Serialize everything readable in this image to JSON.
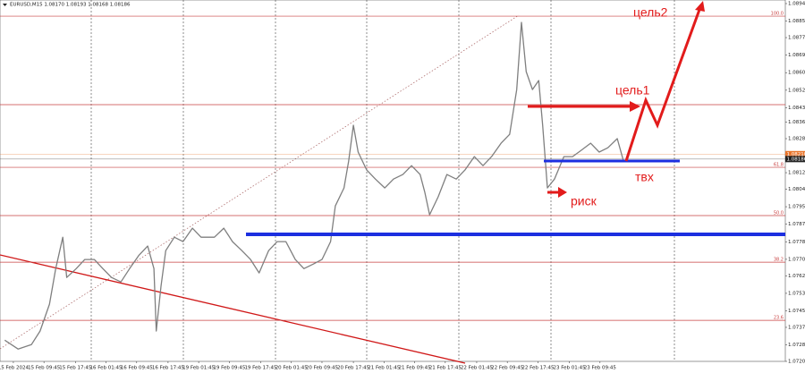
{
  "chart_data": {
    "type": "line",
    "title": "EURUSD,M15  1.08170 1.08193 1.08168 1.08186",
    "xlim": [
      0,
      100
    ],
    "ylim": [
      1.07205,
      1.0894
    ],
    "yticks": [
      {
        "value": 1.0894,
        "label": "1.08940"
      },
      1.08855,
      1.08775,
      {
        "value": 1.0869,
        "label": "1.08690"
      },
      1.08605,
      {
        "value": 1.0852,
        "label": "1.08520"
      },
      1.08435,
      1.08365,
      1.08285,
      {
        "value": 1.082,
        "label": "1.08200"
      },
      {
        "value": 1.0812,
        "label": "1.08120"
      },
      {
        "value": 1.0804,
        "label": "1.08040"
      },
      1.07955,
      {
        "value": 1.0787,
        "label": "1.07870"
      },
      1.07785,
      {
        "value": 1.077,
        "label": "1.07700"
      },
      {
        "value": 1.0762,
        "label": "1.07620"
      },
      1.07535,
      {
        "value": 1.0745,
        "label": "1.07450"
      },
      {
        "value": 1.0737,
        "label": "1.07370"
      },
      1.07285,
      1.07205
    ],
    "xticks": [
      {
        "value": 1.7,
        "label": "15 Feb 2024"
      },
      {
        "value": 5.6,
        "label": "15 Feb 09:45"
      },
      {
        "value": 9.6,
        "label": "15 Feb 17:45"
      },
      {
        "value": 13.5,
        "label": "16 Feb 01:45"
      },
      {
        "value": 17.4,
        "label": "16 Feb 09:45"
      },
      {
        "value": 21.4,
        "label": "16 Feb 17:45"
      },
      {
        "value": 25.3,
        "label": "19 Feb 01:45"
      },
      {
        "value": 29.2,
        "label": "19 Feb 09:45"
      },
      {
        "value": 33.2,
        "label": "19 Feb 17:45"
      },
      {
        "value": 37.1,
        "label": "20 Feb 01:45"
      },
      {
        "value": 41.0,
        "label": "20 Feb 09:45"
      },
      {
        "value": 45.0,
        "label": "20 Feb 17:45"
      },
      {
        "value": 48.9,
        "label": "21 Feb 01:45"
      },
      {
        "value": 52.8,
        "label": "21 Feb 09:45"
      },
      {
        "value": 56.7,
        "label": "21 Feb 17:45"
      },
      {
        "value": 60.7,
        "label": "22 Feb 01:45"
      },
      {
        "value": 64.6,
        "label": "22 Feb 09:45"
      },
      {
        "value": 68.5,
        "label": "22 Feb 17:45"
      },
      {
        "value": 72.5,
        "label": "23 Feb 01:45"
      },
      {
        "value": 76.4,
        "label": "23 Feb 09:45"
      }
    ],
    "series": [
      {
        "color": "#7f7f7f",
        "x": [
          0.6,
          2.3,
          4.0,
          5.1,
          6.3,
          7.1,
          8.0,
          8.5,
          9.7,
          10.8,
          12.0,
          13.1,
          14.2,
          15.4,
          16.5,
          17.7,
          18.8,
          19.6,
          19.9,
          20.5,
          21.1,
          22.2,
          23.3,
          24.5,
          25.6,
          27.3,
          28.5,
          29.6,
          30.8,
          31.9,
          33.0,
          34.2,
          35.3,
          36.4,
          37.6,
          38.7,
          39.9,
          41.0,
          42.1,
          42.7,
          43.8,
          44.4,
          45.0,
          45.6,
          46.7,
          47.8,
          49.0,
          50.1,
          51.3,
          52.4,
          53.5,
          54.1,
          54.7,
          55.8,
          56.9,
          58.1,
          59.2,
          60.4,
          61.5,
          62.6,
          63.8,
          64.9,
          65.8,
          66.4,
          67.0,
          67.8,
          68.6,
          69.1,
          69.7,
          70.6,
          71.8,
          72.9,
          74.0,
          75.2,
          76.3,
          77.4,
          78.6,
          79.4
        ],
        "values": [
          1.07308,
          1.07265,
          1.07286,
          1.07352,
          1.07482,
          1.07655,
          1.07807,
          1.07612,
          1.07655,
          1.07699,
          1.07699,
          1.07655,
          1.07612,
          1.0759,
          1.07655,
          1.0772,
          1.07764,
          1.07655,
          1.07352,
          1.07569,
          1.07742,
          1.07807,
          1.07786,
          1.07851,
          1.07807,
          1.07807,
          1.07851,
          1.07786,
          1.07742,
          1.07699,
          1.07634,
          1.07742,
          1.07786,
          1.07786,
          1.07699,
          1.07655,
          1.07677,
          1.07699,
          1.07786,
          1.07959,
          1.08046,
          1.08176,
          1.0835,
          1.0822,
          1.08133,
          1.08089,
          1.08046,
          1.08089,
          1.08111,
          1.08154,
          1.08111,
          1.08024,
          1.07916,
          1.08003,
          1.08111,
          1.08089,
          1.08133,
          1.08198,
          1.08154,
          1.08198,
          1.08263,
          1.08306,
          1.08523,
          1.08849,
          1.0861,
          1.08523,
          1.08567,
          1.0835,
          1.08046,
          1.08089,
          1.08198,
          1.08198,
          1.08228,
          1.08263,
          1.0822,
          1.08241,
          1.08285,
          1.08176
        ]
      }
    ],
    "levels": [
      {
        "value": 1.08879,
        "label": "100.0"
      },
      {
        "value": 1.0845
      },
      {
        "value": 1.08146,
        "label": "61.8"
      },
      {
        "value": 1.07912,
        "label": "50.0"
      },
      {
        "value": 1.07686,
        "label": "38.2"
      },
      {
        "value": 1.07404,
        "label": "23.6"
      }
    ],
    "price_labels": [
      {
        "value": 1.0821,
        "label": "1.08210",
        "color": "#e8742a"
      },
      {
        "value": 1.08186,
        "label": "1.08186",
        "color": "#222222"
      }
    ],
    "annotations": [
      "цель2",
      "цель1",
      "твх",
      "риск"
    ]
  }
}
